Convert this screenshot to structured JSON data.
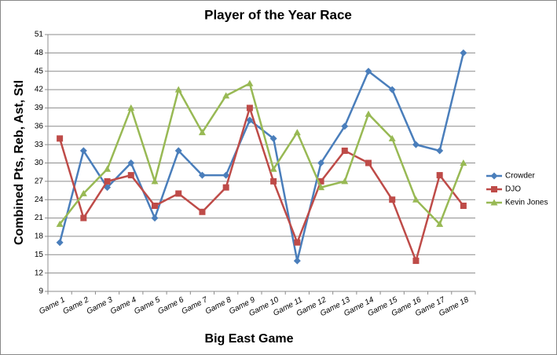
{
  "chart_data": {
    "type": "line",
    "title": "Player of the Year Race",
    "x_label": "Big East Game",
    "y_label": "Combined Pts, Reb, Ast, Stl",
    "categories": [
      "Game 1",
      "Game 2",
      "Game 3",
      "Game 4",
      "Game 5",
      "Game 6",
      "Game 7",
      "Game 8",
      "Game 9",
      "Game 10",
      "Game 11",
      "Game 12",
      "Game 13",
      "Game 14",
      "Game 15",
      "Game 16",
      "Game 17",
      "Game 18"
    ],
    "series": [
      {
        "name": "Crowder",
        "color": "#4a7ebb",
        "marker": "diamond",
        "values": [
          17,
          32,
          26,
          30,
          21,
          32,
          28,
          28,
          37,
          34,
          14,
          30,
          36,
          45,
          42,
          33,
          32,
          48
        ]
      },
      {
        "name": "DJO",
        "color": "#be4b48",
        "marker": "square",
        "values": [
          34,
          21,
          27,
          28,
          23,
          25,
          22,
          26,
          39,
          27,
          17,
          27,
          32,
          30,
          24,
          14,
          28,
          23
        ]
      },
      {
        "name": "Kevin Jones",
        "color": "#98b954",
        "marker": "triangle",
        "values": [
          20,
          25,
          29,
          39,
          27,
          42,
          35,
          41,
          43,
          29,
          35,
          26,
          27,
          38,
          34,
          24,
          20,
          30
        ]
      }
    ],
    "ylim": [
      9,
      51
    ],
    "yticks": [
      9,
      12,
      15,
      18,
      21,
      24,
      27,
      30,
      33,
      36,
      39,
      42,
      45,
      48,
      51
    ],
    "grid": true,
    "legend": "right"
  }
}
